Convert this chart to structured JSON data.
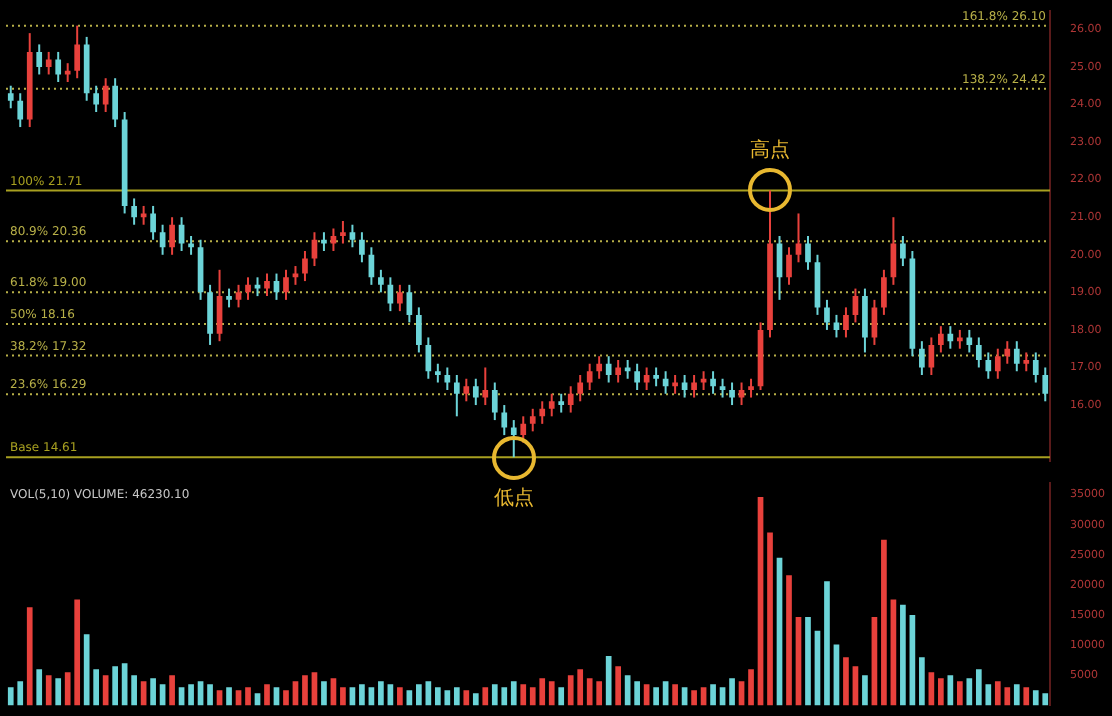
{
  "chart_data": [
    {
      "type": "candlestick",
      "categories": [
        null,
        null,
        null,
        null,
        null,
        null,
        null,
        null,
        null,
        null,
        null,
        null,
        null,
        null,
        null,
        null,
        null,
        null,
        null,
        null,
        null,
        null,
        null,
        null,
        null,
        null,
        null,
        null,
        null,
        null,
        null,
        null,
        null,
        null,
        null,
        null,
        null,
        null,
        null,
        null,
        null,
        null,
        null,
        null,
        null,
        null,
        null,
        null,
        null,
        null,
        null,
        null,
        null,
        null,
        null,
        null,
        null,
        null,
        null,
        null,
        null,
        null,
        null,
        null,
        null,
        null,
        null,
        null,
        null,
        null,
        null,
        null,
        null,
        null,
        null,
        null,
        null,
        null,
        null,
        null,
        null,
        null,
        null,
        null,
        null,
        null,
        null,
        null,
        null,
        null,
        null,
        null,
        null,
        null,
        null,
        null,
        null,
        null,
        null,
        null,
        null,
        null,
        null,
        null,
        null,
        null,
        null,
        null,
        null,
        null
      ],
      "ohlc": [
        [
          24.3,
          24.5,
          23.9,
          24.1
        ],
        [
          24.1,
          24.3,
          23.4,
          23.6
        ],
        [
          23.6,
          25.9,
          23.4,
          25.4
        ],
        [
          25.4,
          25.6,
          24.8,
          25.0
        ],
        [
          25.0,
          25.4,
          24.8,
          25.2
        ],
        [
          25.2,
          25.4,
          24.6,
          24.8
        ],
        [
          24.8,
          25.1,
          24.6,
          24.9
        ],
        [
          24.9,
          26.1,
          24.7,
          25.6
        ],
        [
          25.6,
          25.8,
          24.1,
          24.3
        ],
        [
          24.3,
          24.5,
          23.8,
          24.0
        ],
        [
          24.0,
          24.7,
          23.8,
          24.5
        ],
        [
          24.5,
          24.7,
          23.4,
          23.6
        ],
        [
          23.6,
          23.8,
          21.1,
          21.3
        ],
        [
          21.3,
          21.5,
          20.8,
          21.0
        ],
        [
          21.0,
          21.3,
          20.8,
          21.1
        ],
        [
          21.1,
          21.3,
          20.4,
          20.6
        ],
        [
          20.6,
          20.8,
          20.0,
          20.2
        ],
        [
          20.2,
          21.0,
          20.0,
          20.8
        ],
        [
          20.8,
          21.0,
          20.1,
          20.3
        ],
        [
          20.3,
          20.5,
          20.0,
          20.2
        ],
        [
          20.2,
          20.4,
          18.8,
          19.0
        ],
        [
          19.0,
          19.2,
          17.6,
          17.9
        ],
        [
          17.9,
          19.6,
          17.7,
          18.9
        ],
        [
          18.9,
          19.1,
          18.6,
          18.8
        ],
        [
          18.8,
          19.2,
          18.6,
          19.0
        ],
        [
          19.0,
          19.4,
          18.8,
          19.2
        ],
        [
          19.2,
          19.4,
          18.9,
          19.1
        ],
        [
          19.1,
          19.5,
          18.9,
          19.3
        ],
        [
          19.3,
          19.5,
          18.8,
          19.0
        ],
        [
          19.0,
          19.6,
          18.8,
          19.4
        ],
        [
          19.4,
          19.7,
          19.2,
          19.5
        ],
        [
          19.5,
          20.1,
          19.3,
          19.9
        ],
        [
          19.9,
          20.6,
          19.7,
          20.4
        ],
        [
          20.4,
          20.6,
          20.1,
          20.3
        ],
        [
          20.3,
          20.7,
          20.1,
          20.5
        ],
        [
          20.5,
          20.9,
          20.3,
          20.6
        ],
        [
          20.6,
          20.8,
          20.2,
          20.4
        ],
        [
          20.4,
          20.6,
          19.8,
          20.0
        ],
        [
          20.0,
          20.2,
          19.2,
          19.4
        ],
        [
          19.4,
          19.6,
          19.0,
          19.2
        ],
        [
          19.2,
          19.4,
          18.5,
          18.7
        ],
        [
          18.7,
          19.2,
          18.5,
          19.0
        ],
        [
          19.0,
          19.2,
          18.2,
          18.4
        ],
        [
          18.4,
          18.6,
          17.4,
          17.6
        ],
        [
          17.6,
          17.8,
          16.7,
          16.9
        ],
        [
          16.9,
          17.1,
          16.6,
          16.8
        ],
        [
          16.8,
          17.0,
          16.4,
          16.6
        ],
        [
          16.6,
          16.8,
          15.7,
          16.3
        ],
        [
          16.3,
          16.7,
          16.1,
          16.5
        ],
        [
          16.5,
          16.7,
          16.0,
          16.2
        ],
        [
          16.2,
          17.0,
          16.0,
          16.4
        ],
        [
          16.4,
          16.6,
          15.6,
          15.8
        ],
        [
          15.8,
          16.0,
          15.2,
          15.4
        ],
        [
          15.4,
          15.6,
          14.61,
          15.2
        ],
        [
          15.2,
          15.7,
          15.0,
          15.5
        ],
        [
          15.5,
          15.9,
          15.3,
          15.7
        ],
        [
          15.7,
          16.1,
          15.5,
          15.9
        ],
        [
          15.9,
          16.3,
          15.7,
          16.1
        ],
        [
          16.1,
          16.3,
          15.8,
          16.0
        ],
        [
          16.0,
          16.5,
          15.8,
          16.3
        ],
        [
          16.3,
          16.8,
          16.1,
          16.6
        ],
        [
          16.6,
          17.1,
          16.4,
          16.9
        ],
        [
          16.9,
          17.3,
          16.7,
          17.1
        ],
        [
          17.1,
          17.3,
          16.6,
          16.8
        ],
        [
          16.8,
          17.2,
          16.6,
          17.0
        ],
        [
          17.0,
          17.2,
          16.7,
          16.9
        ],
        [
          16.9,
          17.1,
          16.4,
          16.6
        ],
        [
          16.6,
          17.0,
          16.4,
          16.8
        ],
        [
          16.8,
          17.0,
          16.5,
          16.7
        ],
        [
          16.7,
          16.9,
          16.3,
          16.5
        ],
        [
          16.5,
          16.8,
          16.3,
          16.6
        ],
        [
          16.6,
          16.8,
          16.2,
          16.4
        ],
        [
          16.4,
          16.8,
          16.2,
          16.6
        ],
        [
          16.6,
          16.9,
          16.4,
          16.7
        ],
        [
          16.7,
          16.9,
          16.3,
          16.5
        ],
        [
          16.5,
          16.7,
          16.2,
          16.4
        ],
        [
          16.4,
          16.6,
          16.0,
          16.2
        ],
        [
          16.2,
          16.6,
          16.0,
          16.4
        ],
        [
          16.4,
          16.7,
          16.2,
          16.5
        ],
        [
          16.5,
          18.2,
          16.4,
          18.0
        ],
        [
          18.0,
          21.71,
          17.8,
          20.3
        ],
        [
          20.3,
          20.5,
          18.8,
          19.4
        ],
        [
          19.4,
          20.2,
          19.2,
          20.0
        ],
        [
          20.0,
          21.1,
          19.8,
          20.3
        ],
        [
          20.3,
          20.5,
          19.6,
          19.8
        ],
        [
          19.8,
          20.0,
          18.4,
          18.6
        ],
        [
          18.6,
          18.8,
          18.0,
          18.2
        ],
        [
          18.2,
          18.4,
          17.8,
          18.0
        ],
        [
          18.0,
          18.6,
          17.8,
          18.4
        ],
        [
          18.4,
          19.1,
          18.2,
          18.9
        ],
        [
          18.9,
          19.1,
          17.4,
          17.8
        ],
        [
          17.8,
          18.8,
          17.6,
          18.6
        ],
        [
          18.6,
          19.6,
          18.4,
          19.4
        ],
        [
          19.4,
          21.0,
          19.2,
          20.3
        ],
        [
          20.3,
          20.5,
          19.7,
          19.9
        ],
        [
          19.9,
          20.1,
          17.3,
          17.5
        ],
        [
          17.5,
          17.7,
          16.8,
          17.0
        ],
        [
          17.0,
          17.8,
          16.8,
          17.6
        ],
        [
          17.6,
          18.1,
          17.4,
          17.9
        ],
        [
          17.9,
          18.1,
          17.5,
          17.7
        ],
        [
          17.7,
          18.0,
          17.5,
          17.8
        ],
        [
          17.8,
          18.0,
          17.4,
          17.6
        ],
        [
          17.6,
          17.8,
          17.0,
          17.2
        ],
        [
          17.2,
          17.4,
          16.7,
          16.9
        ],
        [
          16.9,
          17.5,
          16.7,
          17.3
        ],
        [
          17.3,
          17.7,
          17.1,
          17.5
        ],
        [
          17.5,
          17.7,
          16.9,
          17.1
        ],
        [
          17.1,
          17.4,
          16.9,
          17.2
        ],
        [
          17.2,
          17.4,
          16.6,
          16.8
        ],
        [
          16.8,
          17.0,
          16.1,
          16.3
        ]
      ],
      "colors": [
        "#6cd4d8",
        "#6cd4d8",
        "#e8413c",
        "#6cd4d8",
        "#e8413c",
        "#6cd4d8",
        "#e8413c",
        "#e8413c",
        "#6cd4d8",
        "#6cd4d8",
        "#e8413c",
        "#6cd4d8",
        "#6cd4d8",
        "#6cd4d8",
        "#e8413c",
        "#6cd4d8",
        "#6cd4d8",
        "#e8413c",
        "#6cd4d8",
        "#6cd4d8",
        "#6cd4d8",
        "#6cd4d8",
        "#e8413c",
        "#6cd4d8",
        "#e8413c",
        "#e8413c",
        "#6cd4d8",
        "#e8413c",
        "#6cd4d8",
        "#e8413c",
        "#e8413c",
        "#e8413c",
        "#e8413c",
        "#6cd4d8",
        "#e8413c",
        "#e8413c",
        "#6cd4d8",
        "#6cd4d8",
        "#6cd4d8",
        "#6cd4d8",
        "#6cd4d8",
        "#e8413c",
        "#6cd4d8",
        "#6cd4d8",
        "#6cd4d8",
        "#6cd4d8",
        "#6cd4d8",
        "#6cd4d8",
        "#e8413c",
        "#6cd4d8",
        "#e8413c",
        "#6cd4d8",
        "#6cd4d8",
        "#6cd4d8",
        "#e8413c",
        "#e8413c",
        "#e8413c",
        "#e8413c",
        "#6cd4d8",
        "#e8413c",
        "#e8413c",
        "#e8413c",
        "#e8413c",
        "#6cd4d8",
        "#e8413c",
        "#6cd4d8",
        "#6cd4d8",
        "#e8413c",
        "#6cd4d8",
        "#6cd4d8",
        "#e8413c",
        "#6cd4d8",
        "#e8413c",
        "#e8413c",
        "#6cd4d8",
        "#6cd4d8",
        "#6cd4d8",
        "#e8413c",
        "#e8413c",
        "#e8413c",
        "#e8413c",
        "#6cd4d8",
        "#e8413c",
        "#e8413c",
        "#6cd4d8",
        "#6cd4d8",
        "#6cd4d8",
        "#6cd4d8",
        "#e8413c",
        "#e8413c",
        "#6cd4d8",
        "#e8413c",
        "#e8413c",
        "#e8413c",
        "#6cd4d8",
        "#6cd4d8",
        "#6cd4d8",
        "#e8413c",
        "#e8413c",
        "#6cd4d8",
        "#e8413c",
        "#6cd4d8",
        "#6cd4d8",
        "#6cd4d8",
        "#e8413c",
        "#e8413c",
        "#6cd4d8",
        "#e8413c",
        "#6cd4d8",
        "#6cd4d8"
      ],
      "ylim": [
        14.5,
        26.5
      ],
      "yticks": [
        {
          "value": 16,
          "label": "16.00"
        },
        {
          "value": 17,
          "label": "17.00"
        },
        {
          "value": 18,
          "label": "18.00"
        },
        {
          "value": 19,
          "label": "19.00"
        },
        {
          "value": 20,
          "label": "20.00"
        },
        {
          "value": 21,
          "label": "21.00"
        },
        {
          "value": 22,
          "label": "22.00"
        },
        {
          "value": 23,
          "label": "23.00"
        },
        {
          "value": 24,
          "label": "24.00"
        },
        {
          "value": 25,
          "label": "25.00"
        },
        {
          "value": 26,
          "label": "26.00"
        }
      ],
      "tick_labels": "y",
      "ref_lines": [
        {
          "axis": "y",
          "value": 26.1,
          "label": "161.8% 26.10",
          "color": "#b8b048",
          "line_style": "dotted"
        },
        {
          "axis": "y",
          "value": 24.42,
          "label": "138.2% 24.42",
          "color": "#b8b048",
          "line_style": "dotted"
        },
        {
          "axis": "y",
          "value": 21.71,
          "label": "100% 21.71",
          "color": "#a8a020",
          "line_style": "solid"
        },
        {
          "axis": "y",
          "value": 20.36,
          "label": "80.9% 20.36",
          "color": "#b8b048",
          "line_style": "dotted"
        },
        {
          "axis": "y",
          "value": 19.0,
          "label": "61.8% 19.00",
          "color": "#b8b048",
          "line_style": "dotted"
        },
        {
          "axis": "y",
          "value": 18.16,
          "label": "50% 18.16",
          "color": "#b8b048",
          "line_style": "dotted"
        },
        {
          "axis": "y",
          "value": 17.32,
          "label": "38.2% 17.32",
          "color": "#b8b048",
          "line_style": "dotted"
        },
        {
          "axis": "y",
          "value": 16.29,
          "label": "23.6% 16.29",
          "color": "#b8b048",
          "line_style": "dotted"
        },
        {
          "axis": "y",
          "value": 14.61,
          "label": "Base 14.61",
          "color": "#a8a020",
          "line_style": "solid"
        }
      ],
      "annotations": [
        {
          "text": "高点",
          "y": 21.71
        },
        {
          "text": "低点",
          "y": 14.61
        }
      ]
    },
    {
      "type": "bar",
      "categories": [
        null,
        null,
        null,
        null,
        null,
        null,
        null,
        null,
        null,
        null,
        null,
        null,
        null,
        null,
        null,
        null,
        null,
        null,
        null,
        null,
        null,
        null,
        null,
        null,
        null,
        null,
        null,
        null,
        null,
        null,
        null,
        null,
        null,
        null,
        null,
        null,
        null,
        null,
        null,
        null,
        null,
        null,
        null,
        null,
        null,
        null,
        null,
        null,
        null,
        null,
        null,
        null,
        null,
        null,
        null,
        null,
        null,
        null,
        null,
        null,
        null,
        null,
        null,
        null,
        null,
        null,
        null,
        null,
        null,
        null,
        null,
        null,
        null,
        null,
        null,
        null,
        null,
        null,
        null,
        null,
        null,
        null,
        null,
        null,
        null,
        null,
        null,
        null,
        null,
        null,
        null,
        null,
        null,
        null,
        null,
        null,
        null,
        null,
        null,
        null,
        null,
        null,
        null,
        null,
        null,
        null,
        null,
        null,
        null,
        null
      ],
      "values": [
        3000,
        4000,
        16300,
        6000,
        5000,
        4500,
        5500,
        17600,
        11800,
        6000,
        5000,
        6500,
        7000,
        5000,
        4000,
        4500,
        3500,
        5000,
        3000,
        3500,
        4000,
        3500,
        2500,
        3000,
        2500,
        3000,
        2000,
        3500,
        3000,
        2500,
        4000,
        5000,
        5500,
        4000,
        4500,
        3000,
        3000,
        3500,
        3000,
        4000,
        3500,
        3000,
        2500,
        3500,
        4000,
        3000,
        2500,
        3000,
        2500,
        2000,
        3000,
        3500,
        3000,
        4000,
        3500,
        3000,
        4500,
        4000,
        3000,
        5000,
        6000,
        4500,
        4000,
        8200,
        6500,
        5000,
        4000,
        3500,
        3000,
        4000,
        3500,
        3000,
        2500,
        3000,
        3500,
        3000,
        4500,
        4000,
        6000,
        34600,
        28700,
        24500,
        21600,
        14700,
        14700,
        12400,
        20600,
        10100,
        8000,
        6500,
        5000,
        14700,
        27500,
        17600,
        16700,
        15000,
        8000,
        5500,
        4500,
        5000,
        4000,
        4500,
        6000,
        3500,
        4000,
        3000,
        3500,
        3000,
        2500,
        2000
      ],
      "colors": [
        "#6cd4d8",
        "#6cd4d8",
        "#e8413c",
        "#6cd4d8",
        "#e8413c",
        "#6cd4d8",
        "#e8413c",
        "#e8413c",
        "#6cd4d8",
        "#6cd4d8",
        "#e8413c",
        "#6cd4d8",
        "#6cd4d8",
        "#6cd4d8",
        "#e8413c",
        "#6cd4d8",
        "#6cd4d8",
        "#e8413c",
        "#6cd4d8",
        "#6cd4d8",
        "#6cd4d8",
        "#6cd4d8",
        "#e8413c",
        "#6cd4d8",
        "#e8413c",
        "#e8413c",
        "#6cd4d8",
        "#e8413c",
        "#6cd4d8",
        "#e8413c",
        "#e8413c",
        "#e8413c",
        "#e8413c",
        "#6cd4d8",
        "#e8413c",
        "#e8413c",
        "#6cd4d8",
        "#6cd4d8",
        "#6cd4d8",
        "#6cd4d8",
        "#6cd4d8",
        "#e8413c",
        "#6cd4d8",
        "#6cd4d8",
        "#6cd4d8",
        "#6cd4d8",
        "#6cd4d8",
        "#6cd4d8",
        "#e8413c",
        "#6cd4d8",
        "#e8413c",
        "#6cd4d8",
        "#6cd4d8",
        "#6cd4d8",
        "#e8413c",
        "#e8413c",
        "#e8413c",
        "#e8413c",
        "#6cd4d8",
        "#e8413c",
        "#e8413c",
        "#e8413c",
        "#e8413c",
        "#6cd4d8",
        "#e8413c",
        "#6cd4d8",
        "#6cd4d8",
        "#e8413c",
        "#6cd4d8",
        "#6cd4d8",
        "#e8413c",
        "#6cd4d8",
        "#e8413c",
        "#e8413c",
        "#6cd4d8",
        "#6cd4d8",
        "#6cd4d8",
        "#e8413c",
        "#e8413c",
        "#e8413c",
        "#e8413c",
        "#6cd4d8",
        "#e8413c",
        "#e8413c",
        "#6cd4d8",
        "#6cd4d8",
        "#6cd4d8",
        "#6cd4d8",
        "#e8413c",
        "#e8413c",
        "#6cd4d8",
        "#e8413c",
        "#e8413c",
        "#e8413c",
        "#6cd4d8",
        "#6cd4d8",
        "#6cd4d8",
        "#e8413c",
        "#e8413c",
        "#6cd4d8",
        "#e8413c",
        "#6cd4d8",
        "#6cd4d8",
        "#6cd4d8",
        "#e8413c",
        "#e8413c",
        "#6cd4d8",
        "#e8413c",
        "#6cd4d8",
        "#6cd4d8"
      ],
      "ylim": [
        0,
        37000
      ],
      "yticks": [
        5000,
        10000,
        15000,
        20000,
        25000,
        30000,
        35000
      ],
      "tick_labels": "y",
      "annotations": [
        "VOL(5,10) VOLUME: 46230.10"
      ]
    }
  ]
}
